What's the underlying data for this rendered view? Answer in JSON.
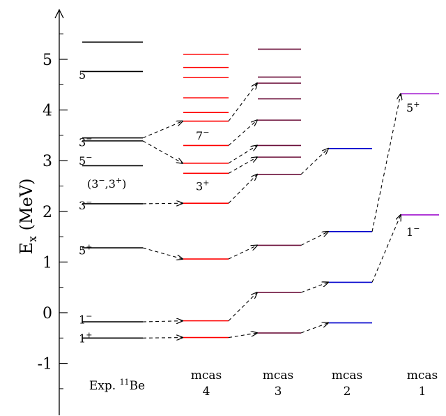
{
  "chart_data": {
    "type": "level-scheme",
    "ylabel": "E",
    "ylabel_sub": "x",
    "ylabel_unit": " (MeV)",
    "ylim": [
      -2,
      5.8
    ],
    "yticks": [
      -1,
      0,
      1,
      2,
      3,
      4,
      5
    ],
    "ytick_labels": [
      "-1",
      "0",
      "1",
      "2",
      "3",
      "4",
      "5"
    ],
    "columns": [
      {
        "id": "exp",
        "label_line1": "Exp.",
        "label_sup": "11",
        "label_line1b": "Be",
        "label_line2": "",
        "color": "#000000",
        "levels": [
          -0.5,
          -0.18,
          1.28,
          2.15,
          2.9,
          3.39,
          3.45,
          4.76,
          5.34
        ]
      },
      {
        "id": "mcas4",
        "label_line1": "mcas",
        "label_line2": "4",
        "color": "#ff0000",
        "levels": [
          -0.49,
          -0.16,
          1.06,
          2.16,
          2.75,
          2.95,
          3.3,
          3.78,
          3.95,
          4.24,
          4.64,
          4.84,
          5.1
        ]
      },
      {
        "id": "mcas3",
        "label_line1": "mcas",
        "label_line2": "3",
        "color": "#6b0f3a",
        "levels": [
          -0.4,
          0.4,
          1.33,
          2.73,
          3.07,
          3.3,
          3.8,
          4.22,
          4.53,
          4.65,
          5.2
        ]
      },
      {
        "id": "mcas2",
        "label_line1": "mcas",
        "label_line2": "2",
        "color": "#0000cc",
        "levels": [
          -0.2,
          0.6,
          1.6,
          3.24
        ]
      },
      {
        "id": "mcas1",
        "label_line1": "mcas",
        "label_line2": "1",
        "color": "#9900cc",
        "levels": [
          1.93,
          4.32
        ]
      }
    ],
    "level_labels": [
      {
        "col": "exp",
        "y": -0.5,
        "base": "1",
        "sup": "+"
      },
      {
        "col": "exp",
        "y": -0.13,
        "base": "1",
        "sup": "−"
      },
      {
        "col": "exp",
        "y": 1.23,
        "base": "5",
        "sup": "+"
      },
      {
        "col": "exp",
        "y": 2.12,
        "base": "3",
        "sup": "−"
      },
      {
        "col": "exp",
        "y": 2.55,
        "base": "(3",
        "sup": "−",
        "base2": ",3",
        "sup2": "+",
        "base3": ")"
      },
      {
        "col": "exp",
        "y": 3.0,
        "base": "5",
        "sup": "−"
      },
      {
        "col": "exp",
        "y": 3.37,
        "base": "3",
        "sup": "−"
      },
      {
        "col": "exp",
        "y": 4.7,
        "base": "5",
        "sup": "−"
      },
      {
        "col": "mcas4",
        "y": 2.5,
        "base": "3",
        "sup": "+"
      },
      {
        "col": "mcas4",
        "y": 3.5,
        "base": "7",
        "sup": "−"
      },
      {
        "col": "mcas1",
        "y": 4.05,
        "base": "5",
        "sup": "+"
      },
      {
        "col": "mcas1",
        "y": 1.6,
        "base": "1",
        "sup": "−"
      }
    ],
    "arrows": [
      {
        "from": "exp",
        "y1": -0.5,
        "to": "mcas4",
        "y2": -0.49
      },
      {
        "from": "exp",
        "y1": -0.18,
        "to": "mcas4",
        "y2": -0.16
      },
      {
        "from": "exp",
        "y1": 1.28,
        "to": "mcas4",
        "y2": 1.06
      },
      {
        "from": "exp",
        "y1": 2.15,
        "to": "mcas4",
        "y2": 2.16
      },
      {
        "from": "exp",
        "y1": 3.39,
        "to": "mcas4",
        "y2": 2.95
      },
      {
        "from": "exp",
        "y1": 3.45,
        "to": "mcas4",
        "y2": 3.78
      },
      {
        "from": "mcas4",
        "y1": -0.49,
        "to": "mcas3",
        "y2": -0.4
      },
      {
        "from": "mcas4",
        "y1": -0.16,
        "to": "mcas3",
        "y2": 0.4
      },
      {
        "from": "mcas4",
        "y1": 1.06,
        "to": "mcas3",
        "y2": 1.33
      },
      {
        "from": "mcas4",
        "y1": 2.16,
        "to": "mcas3",
        "y2": 2.73
      },
      {
        "from": "mcas4",
        "y1": 2.75,
        "to": "mcas3",
        "y2": 3.07
      },
      {
        "from": "mcas4",
        "y1": 2.95,
        "to": "mcas3",
        "y2": 3.3
      },
      {
        "from": "mcas4",
        "y1": 3.3,
        "to": "mcas3",
        "y2": 3.8
      },
      {
        "from": "mcas4",
        "y1": 3.78,
        "to": "mcas3",
        "y2": 4.53
      },
      {
        "from": "mcas3",
        "y1": -0.4,
        "to": "mcas2",
        "y2": -0.2
      },
      {
        "from": "mcas3",
        "y1": 0.4,
        "to": "mcas2",
        "y2": 0.6
      },
      {
        "from": "mcas3",
        "y1": 1.33,
        "to": "mcas2",
        "y2": 1.6
      },
      {
        "from": "mcas3",
        "y1": 2.73,
        "to": "mcas2",
        "y2": 3.24
      },
      {
        "from": "mcas2",
        "y1": 0.6,
        "to": "mcas1",
        "y2": 1.93
      },
      {
        "from": "mcas2",
        "y1": 1.6,
        "to": "mcas1",
        "y2": 4.32
      }
    ]
  }
}
